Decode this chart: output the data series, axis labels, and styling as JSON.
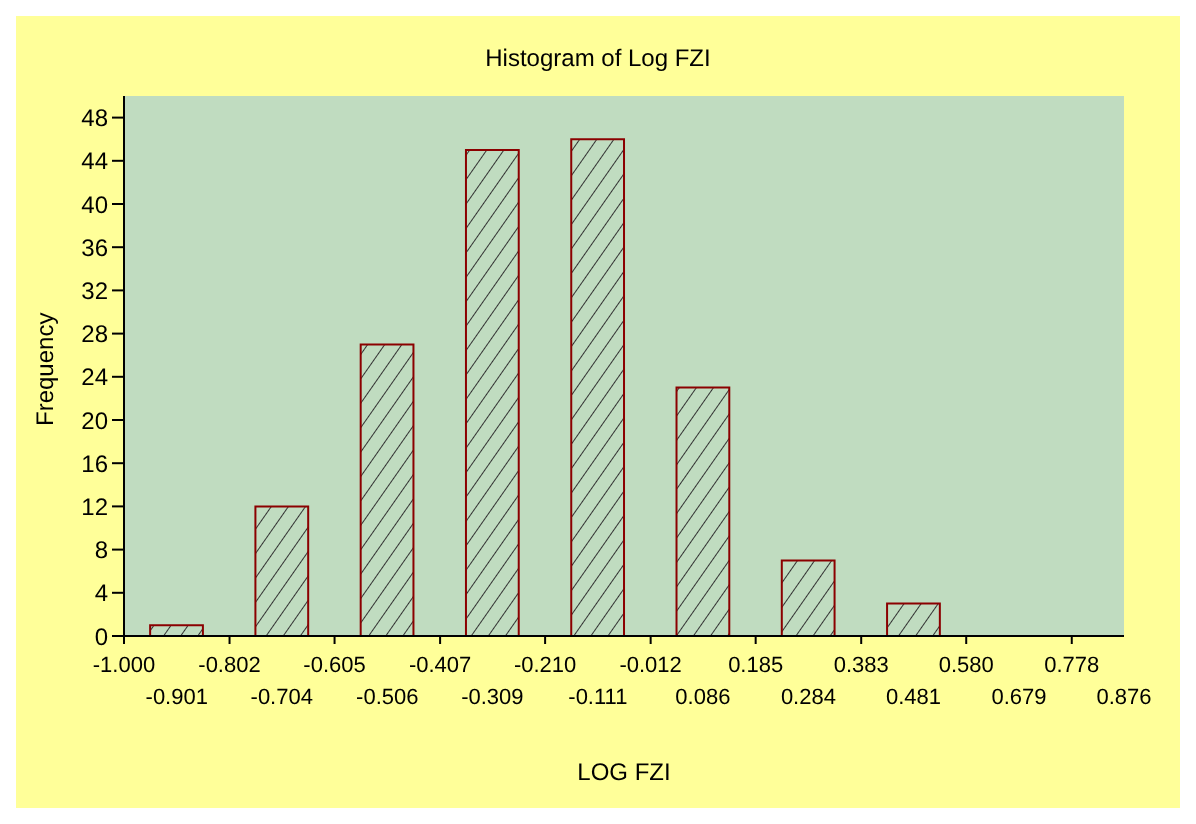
{
  "chart_data": {
    "type": "histogram",
    "title": "Histogram of Log FZI",
    "xlabel": "LOG FZI",
    "ylabel": "Frequency",
    "bins": [
      -1.0,
      -0.802,
      -0.605,
      -0.407,
      -0.21,
      -0.012,
      0.185,
      0.383,
      0.58,
      0.778
    ],
    "values": [
      1,
      12,
      27,
      45,
      46,
      23,
      7,
      3,
      0
    ],
    "color": "#8b0000",
    "xlim": [
      -1.0,
      0.876
    ],
    "xticks": [
      {
        "value": -1.0,
        "label": "-1.000"
      },
      -0.802,
      -0.605,
      -0.407,
      {
        "value": -0.21,
        "label": "-0.210"
      },
      -0.012,
      0.185,
      0.383,
      {
        "value": 0.58,
        "label": "0.580"
      },
      0.778
    ],
    "x2lim": [
      -1.0,
      0.876
    ],
    "x2ticks": [
      -0.901,
      -0.704,
      -0.506,
      -0.309,
      -0.111,
      0.086,
      0.284,
      0.481,
      0.679,
      0.876
    ],
    "ylim": [
      0,
      50
    ],
    "yticks": [
      0,
      4,
      8,
      12,
      16,
      20,
      24,
      28,
      32,
      36,
      40,
      44,
      48
    ],
    "grid": false
  }
}
